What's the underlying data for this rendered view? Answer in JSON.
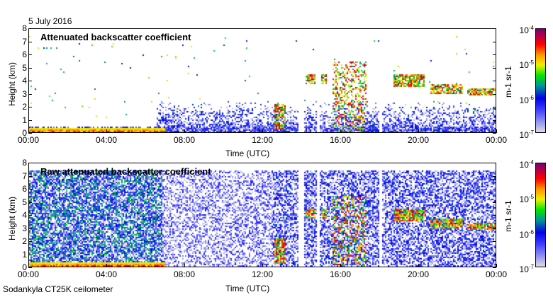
{
  "date": "5 July 2016",
  "footer": "Sodankyla CT25K ceilometer",
  "chart_data": [
    {
      "type": "heatmap",
      "title": "Attenuated backscatter coefficient",
      "xlabel": "Time (UTC)",
      "ylabel": "Height (km)",
      "xticks": [
        "00:00",
        "04:00",
        "08:00",
        "12:00",
        "16:00",
        "20:00",
        "00:00"
      ],
      "yticks": [
        "0",
        "1",
        "2",
        "3",
        "4",
        "5",
        "6",
        "7",
        "8"
      ],
      "xlim_hours": [
        0,
        24
      ],
      "ylim_km": [
        0,
        8
      ],
      "colorbar": {
        "label": "m-1 sr-1",
        "ticks": [
          "10-7",
          "10-6",
          "10-5",
          "10-4"
        ],
        "range_log10": [
          -7,
          -4
        ]
      },
      "noise_top_km": 2.5,
      "noise_start_hour": 6.5
    },
    {
      "type": "heatmap",
      "title": "Raw attenuated backscatter coefficient",
      "xlabel": "Time (UTC)",
      "ylabel": "Height (km)",
      "xticks": [
        "00:00",
        "04:00",
        "08:00",
        "12:00",
        "16:00",
        "20:00",
        "00:00"
      ],
      "yticks": [
        "0",
        "1",
        "2",
        "3",
        "4",
        "5",
        "6",
        "7",
        "8"
      ],
      "xlim_hours": [
        0,
        24
      ],
      "ylim_km": [
        0,
        8
      ],
      "colorbar": {
        "label": "m-1 sr-1",
        "ticks": [
          "10-7",
          "10-6",
          "10-5",
          "10-4"
        ],
        "range_log10": [
          -7,
          -4
        ]
      },
      "noise_top_km": 7.5,
      "noise_start_hour": 0
    }
  ],
  "features": {
    "data_gaps_hours": [
      [
        13.8,
        14.1
      ],
      [
        14.75,
        14.9
      ],
      [
        17.95,
        18.1
      ]
    ],
    "surface_layer": {
      "hours": [
        0,
        7
      ],
      "top_km": 0.35
    },
    "cloud_layers": [
      {
        "hours": [
          12.6,
          13.2
        ],
        "km": [
          0.3,
          2.2
        ]
      },
      {
        "hours": [
          14.2,
          14.7
        ],
        "km": [
          3.8,
          4.5
        ]
      },
      {
        "hours": [
          15.0,
          15.3
        ],
        "km": [
          3.8,
          4.6
        ]
      },
      {
        "hours": [
          15.6,
          17.3
        ],
        "km": [
          0.0,
          5.5
        ]
      },
      {
        "hours": [
          18.7,
          20.3
        ],
        "km": [
          3.6,
          4.6
        ]
      },
      {
        "hours": [
          20.6,
          22.3
        ],
        "km": [
          3.0,
          3.8
        ]
      },
      {
        "hours": [
          22.5,
          24
        ],
        "km": [
          2.9,
          3.5
        ]
      }
    ]
  }
}
